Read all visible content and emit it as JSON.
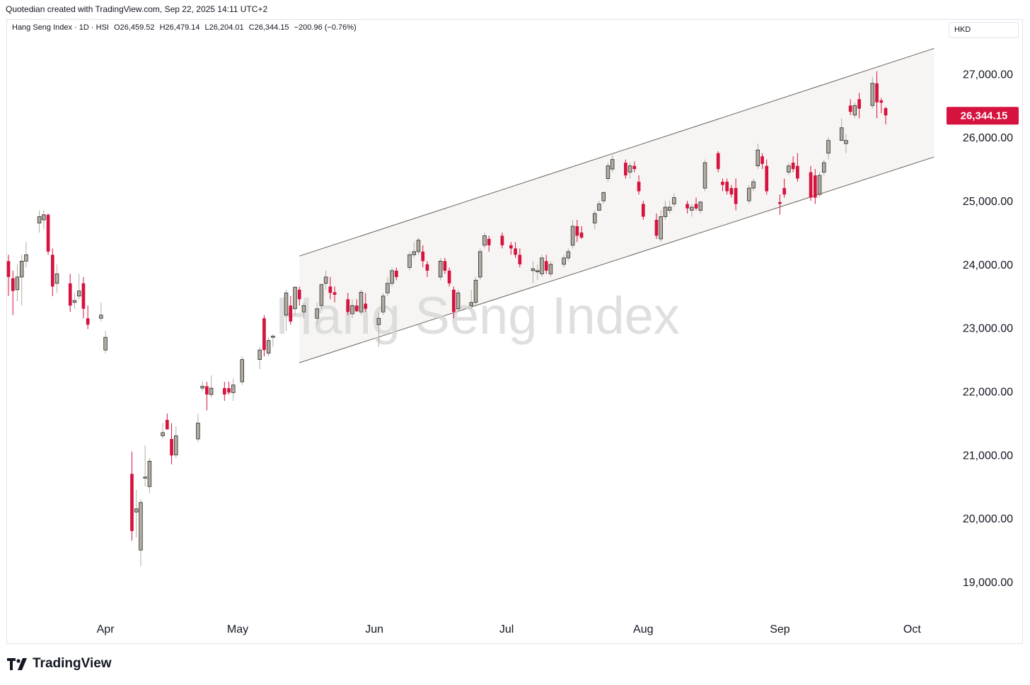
{
  "header": {
    "created_line": "Quotedian created with TradingView.com, Sep 22, 2025 14:11 UTC+2"
  },
  "legend": {
    "symbol_line": "Hang Seng Index · 1D · HSI",
    "open": "O26,459.52",
    "high": "H26,479.14",
    "low": "L26,204.01",
    "close": "C26,344.15",
    "change": "−200.96 (−0.76%)"
  },
  "currency": "HKD",
  "watermark": "Hang Seng Index",
  "last_price_label": "26,344.15",
  "footer": {
    "brand": "TradingView"
  },
  "colors": {
    "up": "#b2aca1",
    "down": "#d6123e",
    "channel_fill": "#f6f5f3",
    "channel_line": "#6b625b",
    "last_price_bg": "#d6123e"
  },
  "chart_data": {
    "type": "candlestick",
    "title": "Hang Seng Index · 1D · HSI",
    "y_ticks": [
      19000,
      20000,
      21000,
      22000,
      23000,
      24000,
      25000,
      26000,
      27000
    ],
    "y_tick_labels": [
      "19,000.00",
      "20,000.00",
      "21,000.00",
      "22,000.00",
      "23,000.00",
      "24,000.00",
      "25,000.00",
      "26,000.00",
      "27,000.00"
    ],
    "ylim": [
      18500,
      27850
    ],
    "x_range": [
      "2025-03-10",
      "2025-10-08"
    ],
    "x_ticks": [
      {
        "label": "Apr",
        "date": "2025-04-01"
      },
      {
        "label": "May",
        "date": "2025-05-01"
      },
      {
        "label": "Jun",
        "date": "2025-06-01"
      },
      {
        "label": "Jul",
        "date": "2025-07-01"
      },
      {
        "label": "Aug",
        "date": "2025-08-01"
      },
      {
        "label": "Sep",
        "date": "2025-09-01"
      },
      {
        "label": "Oct",
        "date": "2025-10-01"
      }
    ],
    "last_price": 26344.15,
    "channel": {
      "upper": [
        {
          "date": "2025-05-15",
          "value": 24130
        },
        {
          "date": "2025-10-06",
          "value": 27400
        }
      ],
      "lower": [
        {
          "date": "2025-05-15",
          "value": 22450
        },
        {
          "date": "2025-10-06",
          "value": 25690
        }
      ]
    },
    "candles": [
      {
        "date": "2025-03-10",
        "o": 24050,
        "h": 24150,
        "l": 23500,
        "c": 23800
      },
      {
        "date": "2025-03-11",
        "o": 23780,
        "h": 23900,
        "l": 23200,
        "c": 23580
      },
      {
        "date": "2025-03-12",
        "o": 23600,
        "h": 24000,
        "l": 23420,
        "c": 23800
      },
      {
        "date": "2025-03-13",
        "o": 23800,
        "h": 24150,
        "l": 23350,
        "c": 24050
      },
      {
        "date": "2025-03-14",
        "o": 24050,
        "h": 24350,
        "l": 23950,
        "c": 24150
      },
      {
        "date": "2025-03-17",
        "o": 24650,
        "h": 24850,
        "l": 24500,
        "c": 24750
      },
      {
        "date": "2025-03-18",
        "o": 24700,
        "h": 24850,
        "l": 24550,
        "c": 24780
      },
      {
        "date": "2025-03-19",
        "o": 24780,
        "h": 24800,
        "l": 24150,
        "c": 24200
      },
      {
        "date": "2025-03-20",
        "o": 24150,
        "h": 24250,
        "l": 23500,
        "c": 23650
      },
      {
        "date": "2025-03-21",
        "o": 23700,
        "h": 24000,
        "l": 23550,
        "c": 23850
      },
      {
        "date": "2025-03-24",
        "o": 23700,
        "h": 23850,
        "l": 23250,
        "c": 23350
      },
      {
        "date": "2025-03-25",
        "o": 23400,
        "h": 23550,
        "l": 23300,
        "c": 23430
      },
      {
        "date": "2025-03-26",
        "o": 23500,
        "h": 23850,
        "l": 23450,
        "c": 23580
      },
      {
        "date": "2025-03-27",
        "o": 23700,
        "h": 23800,
        "l": 23150,
        "c": 23300
      },
      {
        "date": "2025-03-28",
        "o": 23150,
        "h": 23350,
        "l": 22980,
        "c": 23050
      },
      {
        "date": "2025-03-31",
        "o": 23150,
        "h": 23400,
        "l": 23100,
        "c": 23200
      },
      {
        "date": "2025-04-01",
        "o": 22650,
        "h": 22950,
        "l": 22600,
        "c": 22850
      },
      {
        "date": "2025-04-07",
        "o": 20700,
        "h": 21050,
        "l": 19650,
        "c": 19800
      },
      {
        "date": "2025-04-08",
        "o": 20100,
        "h": 20450,
        "l": 19700,
        "c": 20150
      },
      {
        "date": "2025-04-09",
        "o": 19500,
        "h": 20300,
        "l": 19250,
        "c": 20250
      },
      {
        "date": "2025-04-10",
        "o": 20650,
        "h": 21150,
        "l": 20500,
        "c": 20650
      },
      {
        "date": "2025-04-11",
        "o": 20500,
        "h": 20950,
        "l": 20400,
        "c": 20900
      },
      {
        "date": "2025-04-14",
        "o": 21300,
        "h": 21500,
        "l": 21250,
        "c": 21350
      },
      {
        "date": "2025-04-15",
        "o": 21550,
        "h": 21650,
        "l": 21400,
        "c": 21400
      },
      {
        "date": "2025-04-16",
        "o": 21250,
        "h": 21500,
        "l": 20850,
        "c": 20990
      },
      {
        "date": "2025-04-17",
        "o": 21000,
        "h": 21450,
        "l": 20950,
        "c": 21300
      },
      {
        "date": "2025-04-22",
        "o": 21250,
        "h": 21650,
        "l": 21200,
        "c": 21500
      },
      {
        "date": "2025-04-23",
        "o": 22050,
        "h": 22150,
        "l": 22000,
        "c": 22080
      },
      {
        "date": "2025-04-24",
        "o": 22080,
        "h": 22150,
        "l": 21700,
        "c": 21950
      },
      {
        "date": "2025-04-25",
        "o": 21950,
        "h": 22250,
        "l": 21900,
        "c": 22050
      },
      {
        "date": "2025-04-28",
        "o": 22050,
        "h": 22150,
        "l": 21850,
        "c": 21950
      },
      {
        "date": "2025-04-29",
        "o": 22050,
        "h": 22150,
        "l": 21950,
        "c": 21980
      },
      {
        "date": "2025-04-30",
        "o": 21980,
        "h": 22200,
        "l": 21850,
        "c": 22100
      },
      {
        "date": "2025-05-02",
        "o": 22150,
        "h": 22550,
        "l": 22100,
        "c": 22500
      },
      {
        "date": "2025-05-06",
        "o": 22500,
        "h": 22700,
        "l": 22350,
        "c": 22650
      },
      {
        "date": "2025-05-07",
        "o": 23150,
        "h": 23200,
        "l": 22550,
        "c": 22650
      },
      {
        "date": "2025-05-08",
        "o": 22600,
        "h": 22850,
        "l": 22550,
        "c": 22800
      },
      {
        "date": "2025-05-09",
        "o": 22850,
        "h": 22900,
        "l": 22700,
        "c": 22870
      },
      {
        "date": "2025-05-12",
        "o": 23200,
        "h": 23600,
        "l": 22950,
        "c": 23550
      },
      {
        "date": "2025-05-13",
        "o": 23350,
        "h": 23500,
        "l": 23050,
        "c": 23100
      },
      {
        "date": "2025-05-14",
        "o": 23300,
        "h": 23650,
        "l": 23200,
        "c": 23640
      },
      {
        "date": "2025-05-15",
        "o": 23600,
        "h": 23650,
        "l": 23350,
        "c": 23450
      },
      {
        "date": "2025-05-16",
        "o": 23250,
        "h": 23400,
        "l": 23150,
        "c": 23350
      },
      {
        "date": "2025-05-19",
        "o": 23150,
        "h": 23400,
        "l": 23050,
        "c": 23300
      },
      {
        "date": "2025-05-20",
        "o": 23350,
        "h": 23700,
        "l": 23300,
        "c": 23680
      },
      {
        "date": "2025-05-21",
        "o": 23700,
        "h": 23900,
        "l": 23600,
        "c": 23800
      },
      {
        "date": "2025-05-22",
        "o": 23650,
        "h": 23800,
        "l": 23450,
        "c": 23550
      },
      {
        "date": "2025-05-23",
        "o": 23560,
        "h": 23650,
        "l": 23400,
        "c": 23520
      },
      {
        "date": "2025-05-26",
        "o": 23450,
        "h": 23550,
        "l": 23200,
        "c": 23250
      },
      {
        "date": "2025-05-27",
        "o": 23220,
        "h": 23450,
        "l": 23150,
        "c": 23350
      },
      {
        "date": "2025-05-28",
        "o": 23350,
        "h": 23450,
        "l": 23250,
        "c": 23260
      },
      {
        "date": "2025-05-29",
        "o": 23250,
        "h": 23600,
        "l": 23200,
        "c": 23560
      },
      {
        "date": "2025-05-30",
        "o": 23380,
        "h": 23550,
        "l": 23250,
        "c": 23300
      },
      {
        "date": "2025-06-02",
        "o": 23050,
        "h": 23250,
        "l": 22700,
        "c": 23150
      },
      {
        "date": "2025-06-03",
        "o": 23250,
        "h": 23550,
        "l": 23200,
        "c": 23500
      },
      {
        "date": "2025-06-04",
        "o": 23550,
        "h": 23800,
        "l": 23500,
        "c": 23700
      },
      {
        "date": "2025-06-05",
        "o": 23700,
        "h": 23950,
        "l": 23650,
        "c": 23900
      },
      {
        "date": "2025-06-06",
        "o": 23900,
        "h": 23950,
        "l": 23750,
        "c": 23800
      },
      {
        "date": "2025-06-09",
        "o": 23950,
        "h": 24200,
        "l": 23900,
        "c": 24150
      },
      {
        "date": "2025-06-10",
        "o": 24150,
        "h": 24350,
        "l": 24100,
        "c": 24200
      },
      {
        "date": "2025-06-11",
        "o": 24200,
        "h": 24420,
        "l": 24150,
        "c": 24380
      },
      {
        "date": "2025-06-12",
        "o": 24200,
        "h": 24300,
        "l": 23950,
        "c": 24050
      },
      {
        "date": "2025-06-13",
        "o": 24000,
        "h": 24050,
        "l": 23800,
        "c": 23900
      },
      {
        "date": "2025-06-16",
        "o": 23800,
        "h": 24100,
        "l": 23750,
        "c": 24050
      },
      {
        "date": "2025-06-17",
        "o": 24050,
        "h": 24100,
        "l": 23850,
        "c": 23900
      },
      {
        "date": "2025-06-18",
        "o": 23900,
        "h": 23950,
        "l": 23650,
        "c": 23700
      },
      {
        "date": "2025-06-19",
        "o": 23600,
        "h": 23650,
        "l": 23150,
        "c": 23250
      },
      {
        "date": "2025-06-20",
        "o": 23300,
        "h": 23600,
        "l": 23250,
        "c": 23550
      },
      {
        "date": "2025-06-23",
        "o": 23350,
        "h": 23600,
        "l": 23300,
        "c": 23400
      },
      {
        "date": "2025-06-24",
        "o": 23400,
        "h": 23800,
        "l": 23350,
        "c": 23750
      },
      {
        "date": "2025-06-25",
        "o": 23800,
        "h": 24250,
        "l": 23750,
        "c": 24200
      },
      {
        "date": "2025-06-26",
        "o": 24300,
        "h": 24500,
        "l": 24250,
        "c": 24450
      },
      {
        "date": "2025-06-27",
        "o": 24400,
        "h": 24450,
        "l": 24200,
        "c": 24300
      },
      {
        "date": "2025-06-30",
        "o": 24450,
        "h": 24500,
        "l": 24250,
        "c": 24300
      },
      {
        "date": "2025-07-02",
        "o": 24300,
        "h": 24350,
        "l": 24150,
        "c": 24250
      },
      {
        "date": "2025-07-03",
        "o": 24250,
        "h": 24350,
        "l": 24100,
        "c": 24150
      },
      {
        "date": "2025-07-04",
        "o": 24150,
        "h": 24250,
        "l": 23950,
        "c": 24000
      },
      {
        "date": "2025-07-07",
        "o": 23900,
        "h": 24050,
        "l": 23700,
        "c": 23930
      },
      {
        "date": "2025-07-08",
        "o": 23880,
        "h": 24000,
        "l": 23750,
        "c": 23900
      },
      {
        "date": "2025-07-09",
        "o": 23850,
        "h": 24150,
        "l": 23800,
        "c": 24100
      },
      {
        "date": "2025-07-10",
        "o": 24050,
        "h": 24150,
        "l": 23850,
        "c": 23900
      },
      {
        "date": "2025-07-11",
        "o": 23850,
        "h": 24050,
        "l": 23800,
        "c": 24000
      },
      {
        "date": "2025-07-14",
        "o": 24000,
        "h": 24150,
        "l": 23950,
        "c": 24100
      },
      {
        "date": "2025-07-15",
        "o": 24100,
        "h": 24250,
        "l": 24050,
        "c": 24200
      },
      {
        "date": "2025-07-16",
        "o": 24300,
        "h": 24700,
        "l": 24250,
        "c": 24600
      },
      {
        "date": "2025-07-17",
        "o": 24600,
        "h": 24700,
        "l": 24350,
        "c": 24450
      },
      {
        "date": "2025-07-18",
        "o": 24500,
        "h": 24600,
        "l": 24400,
        "c": 24420
      },
      {
        "date": "2025-07-21",
        "o": 24650,
        "h": 24850,
        "l": 24550,
        "c": 24800
      },
      {
        "date": "2025-07-22",
        "o": 24850,
        "h": 25000,
        "l": 24850,
        "c": 24950
      },
      {
        "date": "2025-07-23",
        "o": 25000,
        "h": 25150,
        "l": 24950,
        "c": 25130
      },
      {
        "date": "2025-07-24",
        "o": 25350,
        "h": 25600,
        "l": 25300,
        "c": 25550
      },
      {
        "date": "2025-07-25",
        "o": 25500,
        "h": 25720,
        "l": 25450,
        "c": 25650
      },
      {
        "date": "2025-07-28",
        "o": 25600,
        "h": 25650,
        "l": 25350,
        "c": 25400
      },
      {
        "date": "2025-07-29",
        "o": 25450,
        "h": 25600,
        "l": 25350,
        "c": 25550
      },
      {
        "date": "2025-07-30",
        "o": 25550,
        "h": 25620,
        "l": 25450,
        "c": 25500
      },
      {
        "date": "2025-07-31",
        "o": 25300,
        "h": 25400,
        "l": 25100,
        "c": 25150
      },
      {
        "date": "2025-08-01",
        "o": 24950,
        "h": 25000,
        "l": 24700,
        "c": 24750
      },
      {
        "date": "2025-08-04",
        "o": 24700,
        "h": 24800,
        "l": 24400,
        "c": 24450
      },
      {
        "date": "2025-08-05",
        "o": 24400,
        "h": 24850,
        "l": 24350,
        "c": 24750
      },
      {
        "date": "2025-08-06",
        "o": 24750,
        "h": 25000,
        "l": 24700,
        "c": 24900
      },
      {
        "date": "2025-08-07",
        "o": 24850,
        "h": 25000,
        "l": 24800,
        "c": 24900
      },
      {
        "date": "2025-08-08",
        "o": 24950,
        "h": 25120,
        "l": 24900,
        "c": 25050
      },
      {
        "date": "2025-08-11",
        "o": 24950,
        "h": 25000,
        "l": 24800,
        "c": 24880
      },
      {
        "date": "2025-08-12",
        "o": 24850,
        "h": 24950,
        "l": 24750,
        "c": 24900
      },
      {
        "date": "2025-08-13",
        "o": 24950,
        "h": 25050,
        "l": 24850,
        "c": 24880
      },
      {
        "date": "2025-08-14",
        "o": 24850,
        "h": 25000,
        "l": 24800,
        "c": 24980
      },
      {
        "date": "2025-08-15",
        "o": 25200,
        "h": 25650,
        "l": 25150,
        "c": 25600
      },
      {
        "date": "2025-08-18",
        "o": 25750,
        "h": 25780,
        "l": 25450,
        "c": 25500
      },
      {
        "date": "2025-08-19",
        "o": 25300,
        "h": 25350,
        "l": 25150,
        "c": 25250
      },
      {
        "date": "2025-08-20",
        "o": 25300,
        "h": 25350,
        "l": 25100,
        "c": 25150
      },
      {
        "date": "2025-08-21",
        "o": 25200,
        "h": 25250,
        "l": 25050,
        "c": 25100
      },
      {
        "date": "2025-08-22",
        "o": 25200,
        "h": 25350,
        "l": 24850,
        "c": 24950
      },
      {
        "date": "2025-08-25",
        "o": 25000,
        "h": 25250,
        "l": 24950,
        "c": 25200
      },
      {
        "date": "2025-08-26",
        "o": 25200,
        "h": 25350,
        "l": 25150,
        "c": 25300
      },
      {
        "date": "2025-08-27",
        "o": 25550,
        "h": 25900,
        "l": 25500,
        "c": 25800
      },
      {
        "date": "2025-08-28",
        "o": 25700,
        "h": 25750,
        "l": 25500,
        "c": 25580
      },
      {
        "date": "2025-08-29",
        "o": 25550,
        "h": 25650,
        "l": 25100,
        "c": 25150
      },
      {
        "date": "2025-09-01",
        "o": 24980,
        "h": 25100,
        "l": 24780,
        "c": 24950
      },
      {
        "date": "2025-09-02",
        "o": 25200,
        "h": 25350,
        "l": 25050,
        "c": 25100
      },
      {
        "date": "2025-09-03",
        "o": 25450,
        "h": 25600,
        "l": 25400,
        "c": 25550
      },
      {
        "date": "2025-09-04",
        "o": 25600,
        "h": 25700,
        "l": 25450,
        "c": 25500
      },
      {
        "date": "2025-09-05",
        "o": 25550,
        "h": 25750,
        "l": 25300,
        "c": 25350
      },
      {
        "date": "2025-09-08",
        "o": 25450,
        "h": 25550,
        "l": 25000,
        "c": 25050
      },
      {
        "date": "2025-09-09",
        "o": 25400,
        "h": 25500,
        "l": 24950,
        "c": 25050
      },
      {
        "date": "2025-09-10",
        "o": 25100,
        "h": 25450,
        "l": 25050,
        "c": 25400
      },
      {
        "date": "2025-09-11",
        "o": 25450,
        "h": 25650,
        "l": 25400,
        "c": 25600
      },
      {
        "date": "2025-09-12",
        "o": 25750,
        "h": 26000,
        "l": 25650,
        "c": 25950
      },
      {
        "date": "2025-09-15",
        "o": 25950,
        "h": 26300,
        "l": 25950,
        "c": 26150
      },
      {
        "date": "2025-09-16",
        "o": 25900,
        "h": 26050,
        "l": 25750,
        "c": 25950
      },
      {
        "date": "2025-09-17",
        "o": 26500,
        "h": 26600,
        "l": 26350,
        "c": 26400
      },
      {
        "date": "2025-09-18",
        "o": 26350,
        "h": 26550,
        "l": 26300,
        "c": 26500
      },
      {
        "date": "2025-09-19",
        "o": 26600,
        "h": 26700,
        "l": 26300,
        "c": 26450
      },
      {
        "date": "2025-09-22",
        "o": 26500,
        "h": 26950,
        "l": 26450,
        "c": 26850
      },
      {
        "date": "2025-09-23",
        "o": 26850,
        "h": 27040,
        "l": 26300,
        "c": 26550
      },
      {
        "date": "2025-09-24",
        "o": 26580,
        "h": 26620,
        "l": 26380,
        "c": 26545
      },
      {
        "date": "2025-09-25",
        "o": 26459.52,
        "h": 26479.14,
        "l": 26204.01,
        "c": 26344.15
      }
    ]
  }
}
